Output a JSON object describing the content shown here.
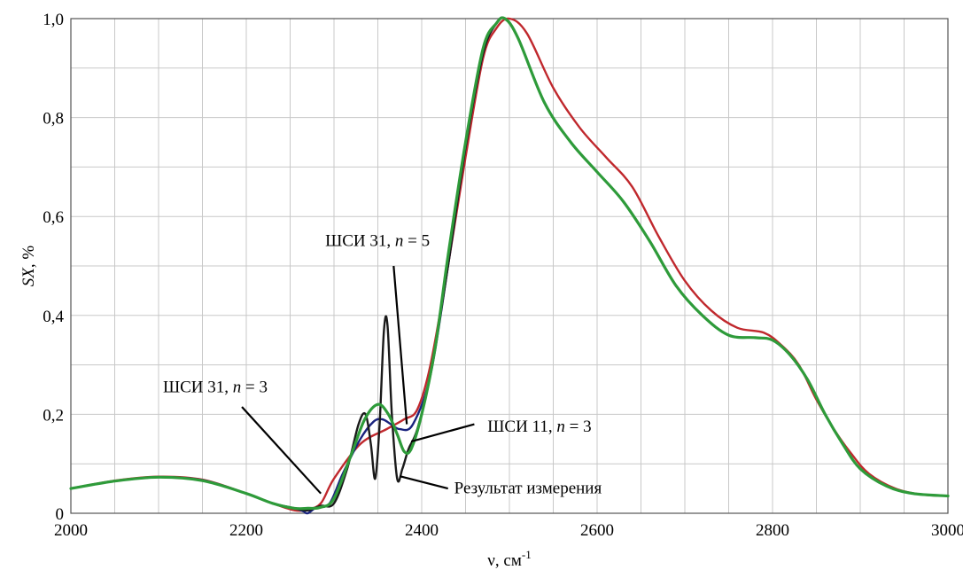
{
  "chart_data": {
    "type": "line",
    "title": "",
    "xlabel": "ν, см",
    "xlabel_sup": "-1",
    "ylabel": "SX, %",
    "xlim": [
      2000,
      3000
    ],
    "ylim": [
      0,
      1.0
    ],
    "grid": true,
    "x_ticks": [
      2000,
      2200,
      2400,
      2600,
      2800,
      3000
    ],
    "x_tick_labels": [
      "2000",
      "2200",
      "2400",
      "2600",
      "2800",
      "3000"
    ],
    "y_ticks": [
      0,
      0.2,
      0.4,
      0.6,
      0.8,
      1.0
    ],
    "y_tick_labels": [
      "0",
      "0,2",
      "0,4",
      "0,6",
      "0,8",
      "1,0"
    ],
    "series": [
      {
        "color": "#c0282d",
        "x": [
          2000,
          2050,
          2100,
          2150,
          2200,
          2230,
          2255,
          2270,
          2285,
          2300,
          2330,
          2360,
          2380,
          2395,
          2410,
          2430,
          2450,
          2470,
          2485,
          2500,
          2520,
          2550,
          2580,
          2610,
          2640,
          2670,
          2700,
          2730,
          2760,
          2790,
          2810,
          2830,
          2850,
          2870,
          2890,
          2910,
          2940,
          2970,
          3000
        ],
        "y": [
          0.05,
          0.066,
          0.074,
          0.068,
          0.04,
          0.02,
          0.006,
          0.008,
          0.02,
          0.07,
          0.14,
          0.17,
          0.19,
          0.21,
          0.3,
          0.5,
          0.72,
          0.92,
          0.98,
          1.0,
          0.97,
          0.86,
          0.78,
          0.72,
          0.66,
          0.56,
          0.47,
          0.41,
          0.375,
          0.365,
          0.34,
          0.3,
          0.23,
          0.17,
          0.12,
          0.08,
          0.05,
          0.038,
          0.035
        ]
      },
      {
        "color": "#1a237e",
        "x": [
          2000,
          2050,
          2100,
          2150,
          2200,
          2230,
          2255,
          2265,
          2270,
          2280,
          2295,
          2310,
          2330,
          2345,
          2355,
          2365,
          2375,
          2390,
          2410,
          2430,
          2450,
          2470,
          2485,
          2495,
          2510,
          2540,
          2570,
          2600,
          2630,
          2660,
          2690,
          2720,
          2750,
          2780,
          2800,
          2820,
          2840,
          2860,
          2880,
          2900,
          2930,
          2960,
          3000
        ],
        "y": [
          0.05,
          0.065,
          0.073,
          0.067,
          0.04,
          0.02,
          0.01,
          0.004,
          0.0,
          0.012,
          0.02,
          0.08,
          0.15,
          0.185,
          0.19,
          0.18,
          0.17,
          0.18,
          0.28,
          0.5,
          0.74,
          0.93,
          0.99,
          1.0,
          0.96,
          0.83,
          0.75,
          0.69,
          0.63,
          0.55,
          0.46,
          0.4,
          0.36,
          0.355,
          0.35,
          0.32,
          0.27,
          0.2,
          0.14,
          0.09,
          0.055,
          0.04,
          0.035
        ]
      },
      {
        "color": "#1a1a1a",
        "x": [
          2000,
          2050,
          2100,
          2150,
          2200,
          2230,
          2255,
          2270,
          2285,
          2300,
          2315,
          2328,
          2336,
          2342,
          2347,
          2352,
          2357,
          2361,
          2366,
          2372,
          2378,
          2385,
          2395,
          2410,
          2430,
          2450,
          2470,
          2485,
          2495,
          2510,
          2540,
          2570,
          2600,
          2630,
          2660,
          2690,
          2720,
          2750,
          2780,
          2800,
          2820,
          2840,
          2860,
          2880,
          2900,
          2930,
          2960,
          3000
        ],
        "y": [
          0.05,
          0.065,
          0.073,
          0.066,
          0.04,
          0.02,
          0.01,
          0.006,
          0.015,
          0.02,
          0.09,
          0.18,
          0.2,
          0.14,
          0.07,
          0.18,
          0.37,
          0.38,
          0.2,
          0.07,
          0.09,
          0.13,
          0.17,
          0.28,
          0.5,
          0.74,
          0.93,
          0.99,
          1.0,
          0.96,
          0.83,
          0.75,
          0.69,
          0.63,
          0.55,
          0.46,
          0.4,
          0.36,
          0.355,
          0.35,
          0.32,
          0.27,
          0.2,
          0.14,
          0.09,
          0.055,
          0.04,
          0.035
        ]
      },
      {
        "color": "#2e9b3a",
        "x": [
          2000,
          2050,
          2100,
          2150,
          2200,
          2230,
          2255,
          2270,
          2285,
          2300,
          2320,
          2335,
          2350,
          2362,
          2372,
          2380,
          2388,
          2400,
          2415,
          2430,
          2450,
          2470,
          2485,
          2495,
          2510,
          2540,
          2570,
          2600,
          2630,
          2660,
          2690,
          2720,
          2750,
          2780,
          2800,
          2820,
          2840,
          2860,
          2880,
          2900,
          2930,
          2960,
          3000
        ],
        "y": [
          0.05,
          0.065,
          0.073,
          0.066,
          0.04,
          0.02,
          0.01,
          0.01,
          0.012,
          0.03,
          0.12,
          0.19,
          0.22,
          0.2,
          0.16,
          0.125,
          0.13,
          0.2,
          0.33,
          0.52,
          0.75,
          0.94,
          0.99,
          1.0,
          0.96,
          0.83,
          0.75,
          0.69,
          0.63,
          0.55,
          0.46,
          0.4,
          0.36,
          0.355,
          0.35,
          0.32,
          0.27,
          0.2,
          0.14,
          0.09,
          0.055,
          0.04,
          0.035
        ]
      }
    ],
    "annotations": [
      {
        "name": "annot-shsi31-n5",
        "parts": [
          "ШСИ 31, ",
          "n",
          " = 5"
        ],
        "tx": 2290,
        "ty": 0.54,
        "x1": 2368,
        "y1": 0.5,
        "x2": 2383,
        "y2": 0.18
      },
      {
        "name": "annot-shsi31-n3",
        "parts": [
          "ШСИ 31, ",
          "n",
          " = 3"
        ],
        "tx": 2105,
        "ty": 0.245,
        "x1": 2195,
        "y1": 0.215,
        "x2": 2285,
        "y2": 0.04
      },
      {
        "name": "annot-shsi11-n3",
        "parts": [
          "ШСИ 11, ",
          "n",
          " = 3"
        ],
        "tx": 2475,
        "ty": 0.165,
        "x1": 2460,
        "y1": 0.18,
        "x2": 2388,
        "y2": 0.145
      },
      {
        "name": "annot-measurement",
        "parts": [
          "Результат измерения",
          "",
          ""
        ],
        "tx": 2437,
        "ty": 0.04,
        "x1": 2430,
        "y1": 0.05,
        "x2": 2375,
        "y2": 0.075
      }
    ]
  }
}
